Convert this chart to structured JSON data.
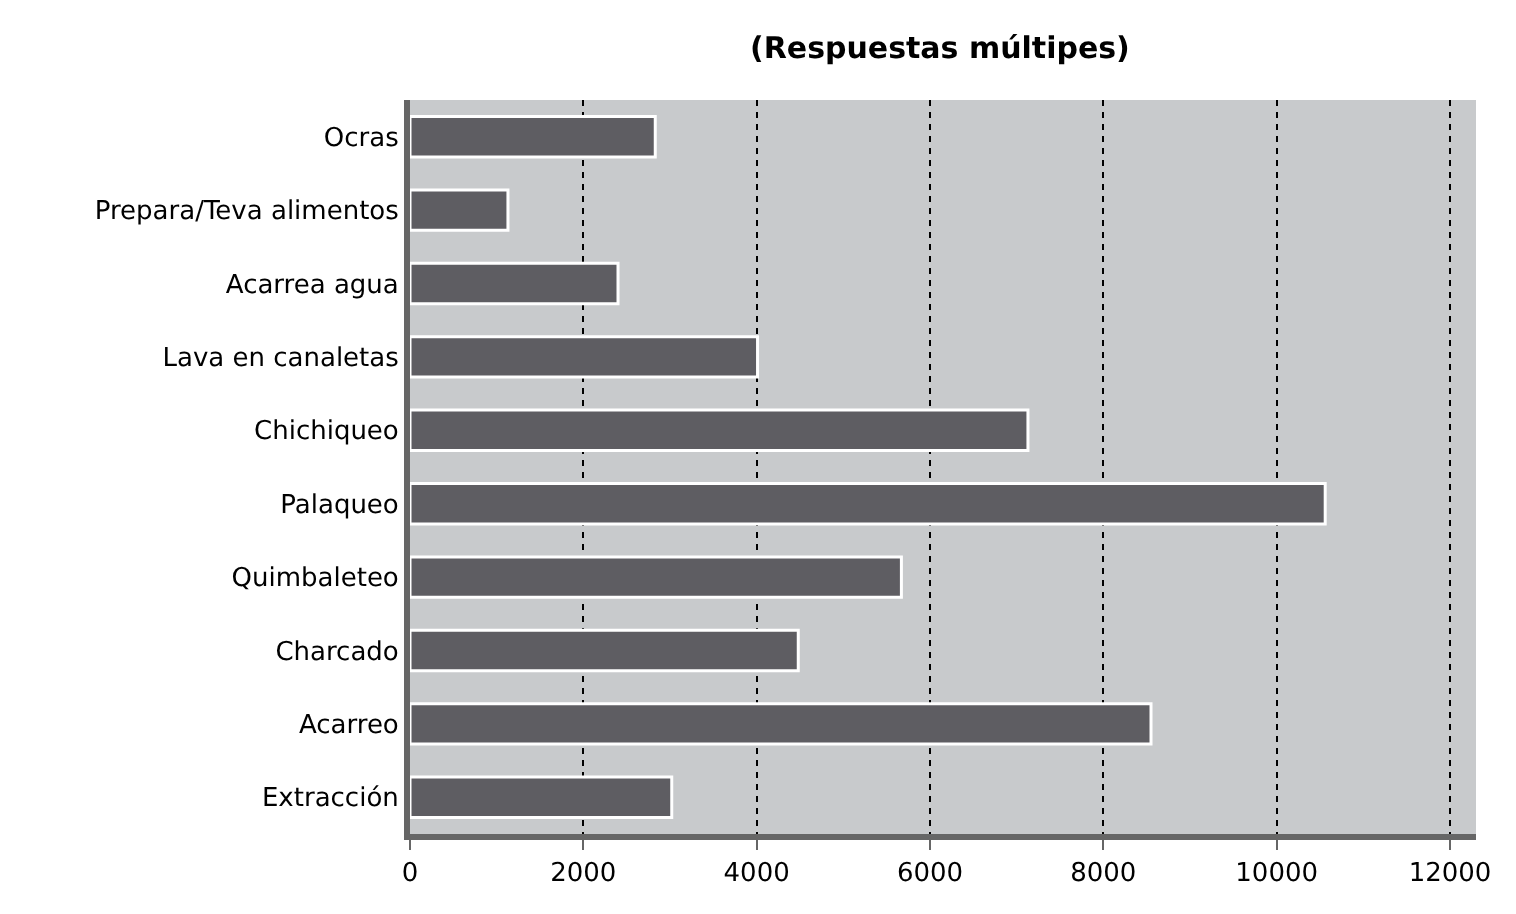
{
  "chart_data": {
    "type": "bar",
    "orientation": "horizontal",
    "title": "(Respuestas múltipes)",
    "categories": [
      "Ocras",
      "Prepara/Teva alimentos",
      "Acarrea agua",
      "Lava en canaletas",
      "Chichiqueo",
      "Palaqueo",
      "Quimbaleteo",
      "Charcado",
      "Acarreo",
      "Extracción"
    ],
    "values": [
      2830,
      1130,
      2400,
      4010,
      7130,
      10560,
      5670,
      4480,
      8550,
      3020
    ],
    "color": "#5e5d62",
    "xlim": [
      0,
      12300
    ],
    "xticks": [
      0,
      2000,
      4000,
      6000,
      8000,
      10000,
      12000
    ],
    "grid": "x"
  }
}
